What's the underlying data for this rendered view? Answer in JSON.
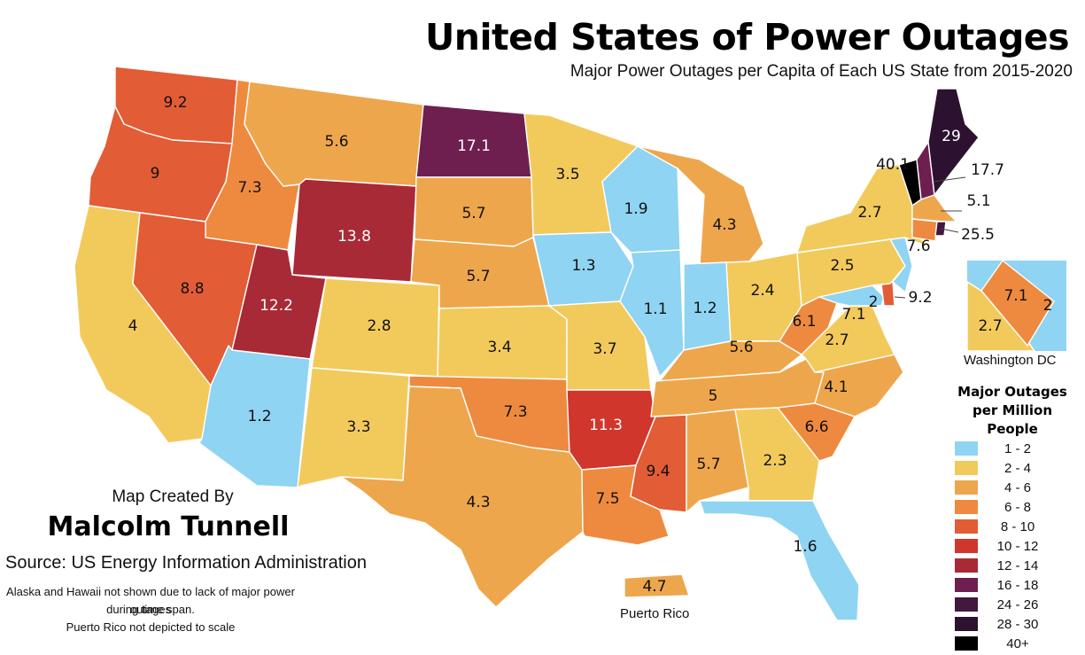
{
  "title": "United States of Power Outages",
  "subtitle": "Major Power Outages per Capita of Each US State from 2015-2020",
  "credit": {
    "line1": "Map Created By",
    "author": "Malcolm Tunnell"
  },
  "source": "Source: US Energy Information Administration",
  "notes": [
    "Alaska and Hawaii not shown due to lack of major power outages",
    "during time span.",
    "Puerto Rico not depicted to scale"
  ],
  "inset_labels": {
    "dc": "Washington DC",
    "pr": "Puerto Rico"
  },
  "legend": {
    "title_line1": "Major Outages",
    "title_line2": "per Million People",
    "items": [
      {
        "label": "1 - 2",
        "color": "#8fd4f2"
      },
      {
        "label": "2 - 4",
        "color": "#f2ca5c"
      },
      {
        "label": "4 - 6",
        "color": "#eea64c"
      },
      {
        "label": "6 - 8",
        "color": "#ee8a3f"
      },
      {
        "label": "8 - 10",
        "color": "#e25c35"
      },
      {
        "label": "10 - 12",
        "color": "#d0362c"
      },
      {
        "label": "12 - 14",
        "color": "#a82a36"
      },
      {
        "label": "16 - 18",
        "color": "#6e1f50"
      },
      {
        "label": "24 - 26",
        "color": "#42183e"
      },
      {
        "label": "28 - 30",
        "color": "#2d1130"
      },
      {
        "label": "40+",
        "color": "#000000"
      }
    ]
  },
  "states": {
    "WA": {
      "value": "9.2",
      "color": "#e25c35"
    },
    "OR": {
      "value": "9",
      "color": "#e25c35"
    },
    "CA": {
      "value": "4",
      "color": "#f2ca5c"
    },
    "ID": {
      "value": "7.3",
      "color": "#ee8a3f"
    },
    "NV": {
      "value": "8.8",
      "color": "#e25c35"
    },
    "MT": {
      "value": "5.6",
      "color": "#eea64c"
    },
    "WY": {
      "value": "13.8",
      "color": "#a82a36"
    },
    "UT": {
      "value": "12.2",
      "color": "#a82a36"
    },
    "AZ": {
      "value": "1.2",
      "color": "#8fd4f2"
    },
    "CO": {
      "value": "2.8",
      "color": "#f2ca5c"
    },
    "NM": {
      "value": "3.3",
      "color": "#f2ca5c"
    },
    "ND": {
      "value": "17.1",
      "color": "#6e1f50"
    },
    "SD": {
      "value": "5.7",
      "color": "#eea64c"
    },
    "NE": {
      "value": "5.7",
      "color": "#eea64c"
    },
    "KS": {
      "value": "3.4",
      "color": "#f2ca5c"
    },
    "OK": {
      "value": "7.3",
      "color": "#ee8a3f"
    },
    "TX": {
      "value": "4.3",
      "color": "#eea64c"
    },
    "MN": {
      "value": "3.5",
      "color": "#f2ca5c"
    },
    "IA": {
      "value": "1.3",
      "color": "#8fd4f2"
    },
    "MO": {
      "value": "3.7",
      "color": "#f2ca5c"
    },
    "AR": {
      "value": "11.3",
      "color": "#d0362c"
    },
    "LA": {
      "value": "7.5",
      "color": "#ee8a3f"
    },
    "WI": {
      "value": "1.9",
      "color": "#8fd4f2"
    },
    "IL": {
      "value": "1.1",
      "color": "#8fd4f2"
    },
    "MS": {
      "value": "9.4",
      "color": "#e25c35"
    },
    "MI": {
      "value": "4.3",
      "color": "#eea64c"
    },
    "IN": {
      "value": "1.2",
      "color": "#8fd4f2"
    },
    "KY": {
      "value": "5.6",
      "color": "#eea64c"
    },
    "TN": {
      "value": "5",
      "color": "#eea64c"
    },
    "AL": {
      "value": "5.7",
      "color": "#eea64c"
    },
    "OH": {
      "value": "2.4",
      "color": "#f2ca5c"
    },
    "GA": {
      "value": "2.3",
      "color": "#f2ca5c"
    },
    "FL": {
      "value": "1.6",
      "color": "#8fd4f2"
    },
    "SC": {
      "value": "6.6",
      "color": "#ee8a3f"
    },
    "NC": {
      "value": "4.1",
      "color": "#eea64c"
    },
    "VA": {
      "value": "2.7",
      "color": "#f2ca5c"
    },
    "WV": {
      "value": "6.1",
      "color": "#ee8a3f"
    },
    "MD": {
      "value": "2",
      "color": "#8fd4f2"
    },
    "DC": {
      "value": "7.1",
      "color": "#ee8a3f"
    },
    "DE": {
      "value": "9.2",
      "color": "#e25c35"
    },
    "PA": {
      "value": "2.5",
      "color": "#f2ca5c"
    },
    "NJ": {
      "value": "",
      "color": "#8fd4f2"
    },
    "NY": {
      "value": "2.7",
      "color": "#f2ca5c"
    },
    "CT": {
      "value": "7.6",
      "color": "#ee8a3f"
    },
    "RI": {
      "value": "25.5",
      "color": "#42183e"
    },
    "MA": {
      "value": "5.1",
      "color": "#eea64c"
    },
    "VT": {
      "value": "40.1",
      "color": "#000000"
    },
    "NH": {
      "value": "17.7",
      "color": "#6e1f50"
    },
    "ME": {
      "value": "29",
      "color": "#2d1130"
    },
    "PR": {
      "value": "4.7",
      "color": "#eea64c"
    }
  },
  "dc_inset": {
    "va": "2.7",
    "dc": "7.1",
    "md": "2"
  }
}
